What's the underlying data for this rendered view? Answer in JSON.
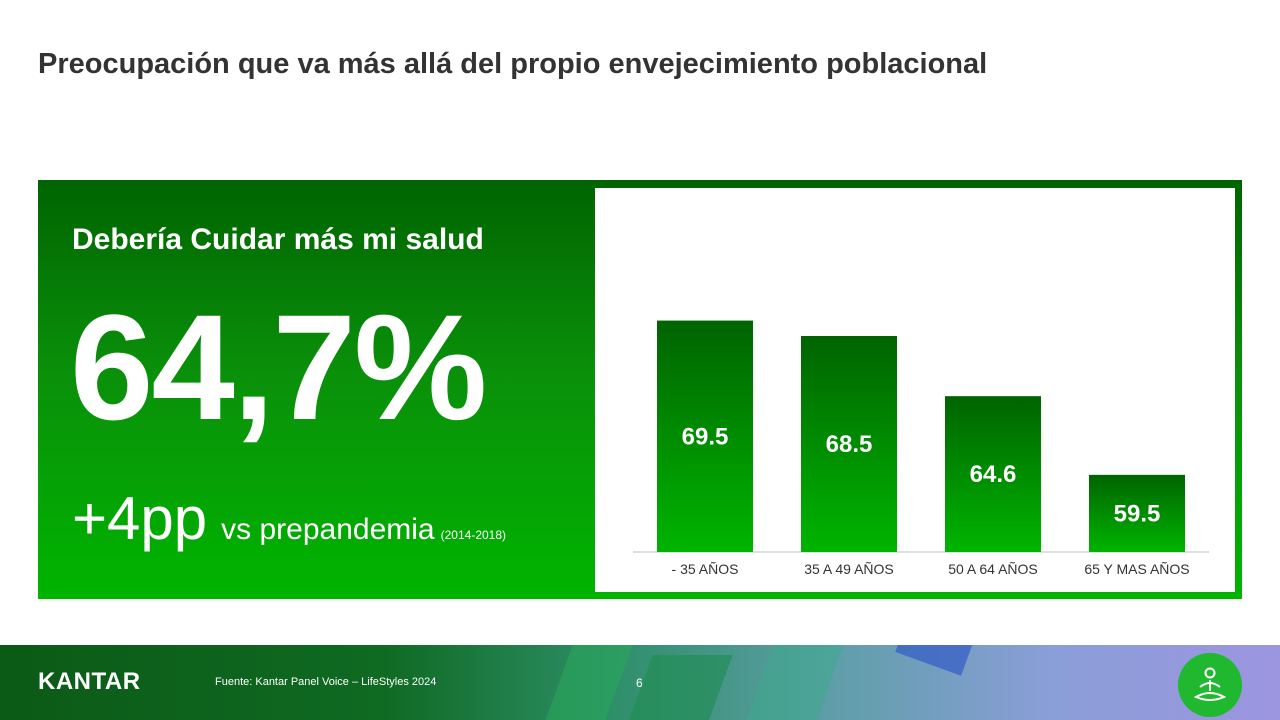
{
  "slide": {
    "title": "Preocupación que va más allá del propio envejecimiento poblacional",
    "page_number": "6"
  },
  "panel": {
    "heading": "Debería Cuidar más mi salud",
    "big_stat": "64,7%",
    "delta_value": "+4pp",
    "delta_text": "vs prepandemia",
    "delta_period": "(2014-2018)"
  },
  "footer": {
    "logo": "KANTAR",
    "source": "Fuente: Kantar Panel Voice – LifeStyles 2024",
    "badge_icon": "meditation-person-icon"
  },
  "colors": {
    "bar_top": "#006400",
    "bar_bottom": "#00b400",
    "label": "#333333"
  },
  "chart_data": {
    "type": "bar",
    "categories": [
      "- 35 AÑOS",
      "35 A 49 AÑOS",
      "50 A 64 AÑOS",
      "65 Y MAS AÑOS"
    ],
    "values": [
      69.5,
      68.5,
      64.6,
      59.5
    ],
    "value_labels": [
      "69.5",
      "68.5",
      "64.6",
      "59.5"
    ],
    "title": "",
    "xlabel": "",
    "ylabel": "",
    "ylim": [
      54.5,
      75.5
    ],
    "grid": false,
    "legend": "none"
  }
}
